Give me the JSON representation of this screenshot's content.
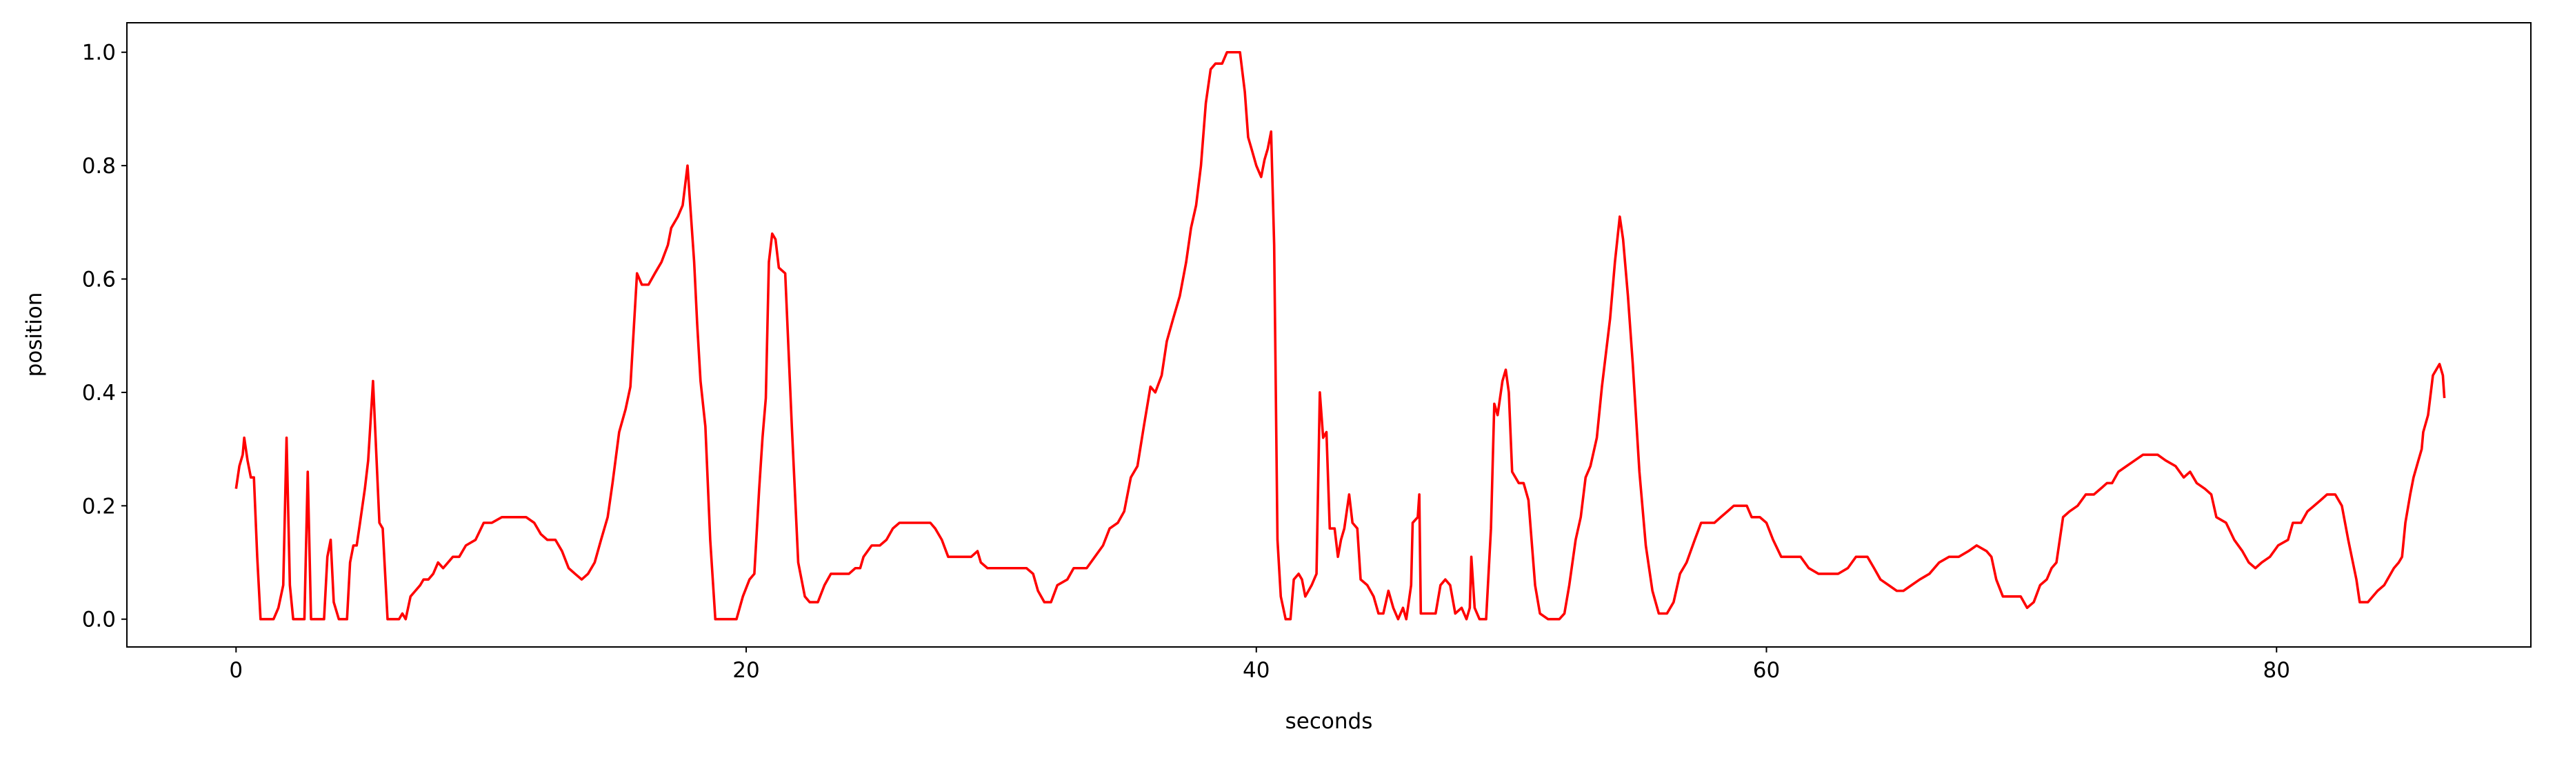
{
  "chart_data": {
    "type": "line",
    "x_label": "seconds",
    "y_label": "position",
    "color": "#ff0000",
    "xlim": [
      -4.28,
      89.97
    ],
    "ylim": [
      -0.049,
      1.052
    ],
    "xticks": [
      0,
      20,
      40,
      60,
      80
    ],
    "yticks": [
      {
        "value": 0,
        "label": "0.0"
      },
      {
        "value": 0.2,
        "label": "0.2"
      },
      {
        "value": 0.4,
        "label": "0.4"
      },
      {
        "value": 0.6,
        "label": "0.6"
      },
      {
        "value": 0.8,
        "label": "0.8"
      },
      {
        "value": 1,
        "label": "1.0"
      }
    ],
    "x": [
      0,
      0.13,
      0.26,
      0.32,
      0.45,
      0.58,
      0.7,
      0.83,
      0.96,
      1.47,
      1.66,
      1.85,
      1.98,
      2.11,
      2.24,
      2.68,
      2.81,
      2.94,
      3.45,
      3.58,
      3.71,
      3.83,
      4.03,
      4.35,
      4.47,
      4.6,
      4.73,
      4.86,
      5.05,
      5.18,
      5.37,
      5.5,
      5.62,
      5.75,
      5.94,
      6.39,
      6.52,
      6.65,
      6.84,
      7.03,
      7.22,
      7.35,
      7.54,
      7.73,
      7.92,
      8.12,
      8.31,
      8.5,
      8.75,
      9.01,
      9.39,
      9.71,
      10.03,
      10.42,
      10.73,
      11.05,
      11.37,
      11.69,
      11.95,
      12.2,
      12.52,
      12.78,
      13.04,
      13.29,
      13.55,
      13.8,
      14.06,
      14.31,
      14.57,
      14.76,
      15.02,
      15.27,
      15.46,
      15.72,
      15.91,
      16.17,
      16.42,
      16.68,
      16.93,
      17.06,
      17.32,
      17.51,
      17.7,
      17.96,
      18.08,
      18.21,
      18.4,
      18.59,
      18.79,
      19.62,
      19.87,
      20.13,
      20.32,
      20.51,
      20.64,
      20.77,
      20.89,
      21.02,
      21.15,
      21.28,
      21.53,
      21.79,
      22.04,
      22.3,
      22.49,
      22.81,
      23.07,
      23.32,
      23.58,
      23.83,
      24.03,
      24.28,
      24.47,
      24.6,
      24.92,
      25.24,
      25.5,
      25.75,
      26.01,
      26.26,
      26.52,
      26.9,
      27.22,
      27.41,
      27.67,
      27.92,
      28.18,
      28.43,
      28.82,
      29.07,
      29.2,
      29.46,
      29.97,
      30.61,
      30.99,
      31.25,
      31.44,
      31.69,
      31.95,
      32.2,
      32.59,
      32.84,
      33.1,
      33.35,
      33.67,
      33.99,
      34.25,
      34.57,
      34.82,
      35.08,
      35.34,
      35.59,
      35.85,
      36.04,
      36.29,
      36.49,
      36.74,
      37.0,
      37.25,
      37.44,
      37.64,
      37.83,
      38.02,
      38.21,
      38.4,
      38.66,
      38.85,
      39.11,
      39.36,
      39.55,
      39.68,
      39.81,
      40.0,
      40.19,
      40.32,
      40.45,
      40.58,
      40.7,
      40.83,
      40.96,
      41.15,
      41.34,
      41.47,
      41.66,
      41.79,
      41.92,
      42.17,
      42.36,
      42.49,
      42.62,
      42.75,
      42.88,
      43.07,
      43.2,
      43.32,
      43.45,
      43.64,
      43.77,
      43.96,
      44.09,
      44.35,
      44.6,
      44.79,
      44.98,
      45.18,
      45.37,
      45.56,
      45.75,
      45.88,
      46.07,
      46.13,
      46.33,
      46.39,
      46.45,
      46.71,
      46.9,
      47.03,
      47.22,
      47.41,
      47.6,
      47.8,
      48.05,
      48.24,
      48.37,
      48.43,
      48.56,
      48.75,
      49.01,
      49.2,
      49.33,
      49.46,
      49.65,
      49.78,
      49.9,
      50.03,
      50.29,
      50.48,
      50.67,
      50.93,
      51.12,
      51.44,
      51.88,
      52.08,
      52.27,
      52.52,
      52.72,
      52.91,
      53.1,
      53.35,
      53.55,
      53.87,
      54.06,
      54.25,
      54.38,
      54.57,
      54.76,
      55.02,
      55.27,
      55.53,
      55.78,
      56.1,
      56.36,
      56.61,
      56.87,
      57.19,
      57.44,
      57.7,
      57.96,
      58.21,
      58.47,
      58.72,
      59.23,
      59.42,
      59.74,
      60.0,
      60.26,
      60.58,
      61.02,
      61.34,
      61.66,
      62.04,
      62.43,
      62.81,
      63.19,
      63.51,
      63.77,
      63.96,
      64.22,
      64.47,
      64.79,
      65.11,
      65.37,
      65.69,
      66.01,
      66.39,
      66.77,
      67.16,
      67.54,
      67.92,
      68.24,
      68.63,
      68.82,
      69.01,
      69.27,
      69.65,
      69.97,
      70.22,
      70.48,
      70.73,
      70.99,
      71.18,
      71.37,
      71.63,
      71.88,
      72.2,
      72.52,
      72.84,
      73.1,
      73.35,
      73.55,
      73.8,
      74.12,
      74.44,
      74.76,
      75.08,
      75.34,
      75.65,
      76.04,
      76.36,
      76.61,
      76.87,
      77.19,
      77.44,
      77.64,
      78.02,
      78.34,
      78.66,
      78.91,
      79.17,
      79.42,
      79.74,
      80.06,
      80.45,
      80.64,
      80.96,
      81.21,
      81.47,
      81.73,
      81.98,
      82.3,
      82.56,
      82.81,
      83.13,
      83.26,
      83.58,
      83.96,
      84.22,
      84.6,
      84.79,
      84.92,
      85.05,
      85.24,
      85.37,
      85.56,
      85.69,
      85.75,
      85.94,
      86.13,
      86.39,
      86.52,
      86.58
    ],
    "values": [
      0.23,
      0.27,
      0.29,
      0.32,
      0.28,
      0.25,
      0.25,
      0.11,
      0,
      0,
      0.02,
      0.06,
      0.32,
      0.06,
      0,
      0,
      0.26,
      0,
      0,
      0.11,
      0.14,
      0.03,
      0,
      0,
      0.1,
      0.13,
      0.13,
      0.17,
      0.23,
      0.28,
      0.42,
      0.29,
      0.17,
      0.16,
      0,
      0,
      0.01,
      0,
      0.04,
      0.05,
      0.06,
      0.07,
      0.07,
      0.08,
      0.1,
      0.09,
      0.1,
      0.11,
      0.11,
      0.13,
      0.14,
      0.17,
      0.17,
      0.18,
      0.18,
      0.18,
      0.18,
      0.17,
      0.15,
      0.14,
      0.14,
      0.12,
      0.09,
      0.08,
      0.07,
      0.08,
      0.1,
      0.14,
      0.18,
      0.24,
      0.33,
      0.37,
      0.41,
      0.61,
      0.59,
      0.59,
      0.61,
      0.63,
      0.66,
      0.69,
      0.71,
      0.73,
      0.8,
      0.63,
      0.52,
      0.42,
      0.34,
      0.14,
      0,
      0,
      0.04,
      0.07,
      0.08,
      0.23,
      0.32,
      0.39,
      0.63,
      0.68,
      0.67,
      0.62,
      0.61,
      0.34,
      0.1,
      0.04,
      0.03,
      0.03,
      0.06,
      0.08,
      0.08,
      0.08,
      0.08,
      0.09,
      0.09,
      0.11,
      0.13,
      0.13,
      0.14,
      0.16,
      0.17,
      0.17,
      0.17,
      0.17,
      0.17,
      0.16,
      0.14,
      0.11,
      0.11,
      0.11,
      0.11,
      0.12,
      0.1,
      0.09,
      0.09,
      0.09,
      0.09,
      0.08,
      0.05,
      0.03,
      0.03,
      0.06,
      0.07,
      0.09,
      0.09,
      0.09,
      0.11,
      0.13,
      0.16,
      0.17,
      0.19,
      0.25,
      0.27,
      0.34,
      0.41,
      0.4,
      0.43,
      0.49,
      0.53,
      0.57,
      0.63,
      0.69,
      0.73,
      0.8,
      0.91,
      0.97,
      0.98,
      0.98,
      1.0,
      1.0,
      1.0,
      0.93,
      0.85,
      0.83,
      0.8,
      0.78,
      0.81,
      0.83,
      0.86,
      0.66,
      0.14,
      0.04,
      0,
      0,
      0.07,
      0.08,
      0.07,
      0.04,
      0.06,
      0.08,
      0.4,
      0.32,
      0.33,
      0.16,
      0.16,
      0.11,
      0.14,
      0.16,
      0.22,
      0.17,
      0.16,
      0.07,
      0.06,
      0.04,
      0.01,
      0.01,
      0.05,
      0.02,
      0,
      0.02,
      0,
      0.06,
      0.17,
      0.18,
      0.22,
      0.01,
      0.01,
      0.01,
      0.01,
      0.06,
      0.07,
      0.06,
      0.01,
      0.02,
      0,
      0.02,
      0.11,
      0.02,
      0,
      0,
      0.16,
      0.38,
      0.36,
      0.42,
      0.44,
      0.4,
      0.26,
      0.24,
      0.24,
      0.21,
      0.06,
      0.01,
      0,
      0,
      0.01,
      0.06,
      0.14,
      0.18,
      0.25,
      0.27,
      0.32,
      0.41,
      0.53,
      0.63,
      0.71,
      0.67,
      0.57,
      0.45,
      0.26,
      0.13,
      0.05,
      0.01,
      0.01,
      0.03,
      0.08,
      0.1,
      0.14,
      0.17,
      0.17,
      0.17,
      0.18,
      0.19,
      0.2,
      0.2,
      0.18,
      0.18,
      0.17,
      0.14,
      0.11,
      0.11,
      0.11,
      0.09,
      0.08,
      0.08,
      0.08,
      0.09,
      0.11,
      0.11,
      0.11,
      0.09,
      0.07,
      0.06,
      0.05,
      0.05,
      0.06,
      0.07,
      0.08,
      0.1,
      0.11,
      0.11,
      0.12,
      0.13,
      0.12,
      0.11,
      0.07,
      0.04,
      0.04,
      0.04,
      0.02,
      0.03,
      0.06,
      0.07,
      0.09,
      0.1,
      0.18,
      0.19,
      0.2,
      0.22,
      0.22,
      0.23,
      0.24,
      0.24,
      0.26,
      0.27,
      0.28,
      0.29,
      0.29,
      0.29,
      0.28,
      0.27,
      0.25,
      0.26,
      0.24,
      0.23,
      0.22,
      0.18,
      0.17,
      0.14,
      0.12,
      0.1,
      0.09,
      0.1,
      0.11,
      0.13,
      0.14,
      0.17,
      0.17,
      0.19,
      0.2,
      0.21,
      0.22,
      0.22,
      0.2,
      0.14,
      0.07,
      0.03,
      0.03,
      0.05,
      0.06,
      0.09,
      0.1,
      0.11,
      0.17,
      0.22,
      0.25,
      0.28,
      0.3,
      0.33,
      0.36,
      0.43,
      0.45,
      0.43,
      0.39
    ]
  }
}
